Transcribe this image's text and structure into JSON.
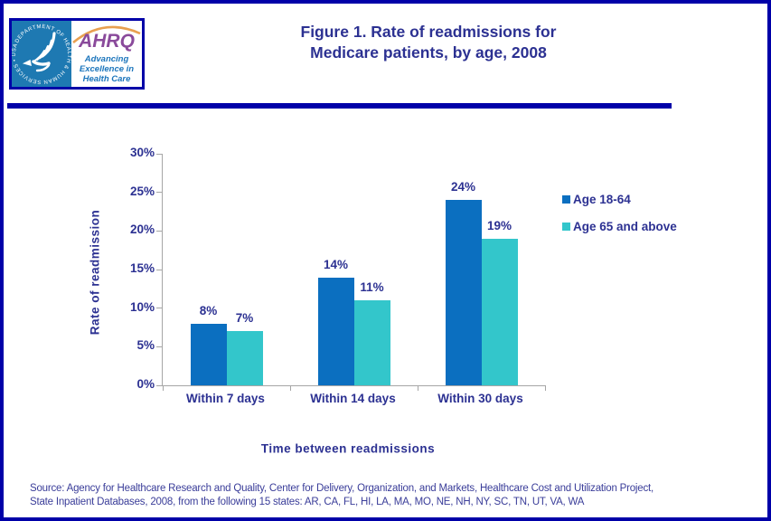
{
  "header": {
    "title_line1": "Figure 1. Rate of readmissions for",
    "title_line2": "Medicare patients, by age, 2008"
  },
  "logo": {
    "org": "AHRQ",
    "tagline_line1": "Advancing",
    "tagline_line2": "Excellence in",
    "tagline_line3": "Health Care",
    "seal_text": "DEPARTMENT OF HEALTH & HUMAN SERVICES • USA"
  },
  "chart_data": {
    "type": "bar",
    "title": "Figure 1. Rate of readmissions for Medicare patients, by age, 2008",
    "categories": [
      "Within 7 days",
      "Within 14 days",
      "Within 30 days"
    ],
    "series": [
      {
        "name": "Age 18-64",
        "color": "#0B6FC0",
        "values": [
          8,
          14,
          24
        ],
        "labels": [
          "8%",
          "14%",
          "24%"
        ]
      },
      {
        "name": "Age 65 and above",
        "color": "#33C6CB",
        "values": [
          7,
          11,
          19
        ],
        "labels": [
          "7%",
          "11%",
          "19%"
        ]
      }
    ],
    "xlabel": "Time between readmissions",
    "ylabel": "Rate of readmission",
    "ylim": [
      0,
      30
    ],
    "ytick_step": 5,
    "yticks": [
      "0%",
      "5%",
      "10%",
      "15%",
      "20%",
      "25%",
      "30%"
    ],
    "legend_position": "right",
    "grid": false,
    "colors": {
      "text": "#2C3192",
      "axis": "#A6A6A6"
    }
  },
  "source": {
    "line1": "Source: Agency for Healthcare Research and Quality, Center for Delivery, Organization, and Markets, Healthcare Cost and Utilization Project,",
    "line2": "State Inpatient Databases, 2008, from the following 15 states: AR, CA, FL, HI, LA, MA, MO, NE, NH, NY, SC, TN, UT, VA, WA"
  }
}
